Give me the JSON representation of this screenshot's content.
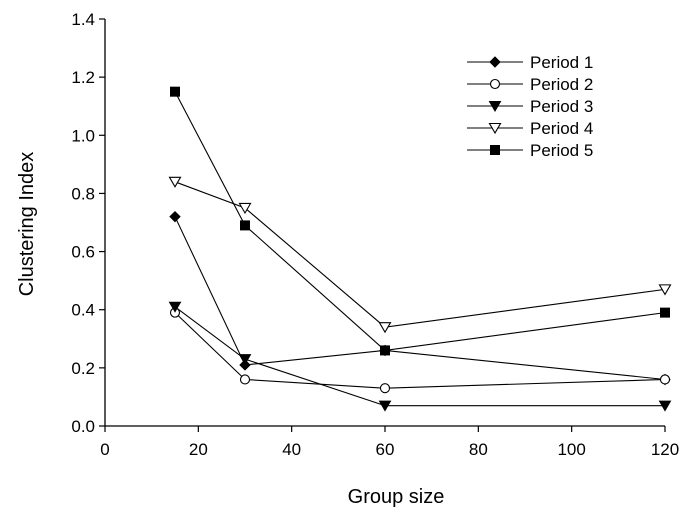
{
  "chart_data": {
    "type": "line",
    "title": "",
    "xlabel": "Group size",
    "ylabel": "Clustering Index",
    "xlim": [
      0,
      120
    ],
    "ylim": [
      0.0,
      1.4
    ],
    "x_ticks": [
      "0",
      "20",
      "40",
      "60",
      "80",
      "100",
      "120"
    ],
    "y_ticks": [
      "0.0",
      "0.2",
      "0.4",
      "0.6",
      "0.8",
      "1.0",
      "1.2",
      "1.4"
    ],
    "grid": false,
    "legend_position": "top-right",
    "x": [
      15,
      30,
      60,
      120
    ],
    "series": [
      {
        "name": "Period 1",
        "marker": "filled-diamond",
        "values": [
          0.72,
          0.21,
          0.26,
          0.16
        ]
      },
      {
        "name": "Period 2",
        "marker": "open-circle",
        "values": [
          0.39,
          0.16,
          0.13,
          0.16
        ]
      },
      {
        "name": "Period 3",
        "marker": "filled-triangle-down",
        "values": [
          0.41,
          0.23,
          0.07,
          0.07
        ]
      },
      {
        "name": "Period 4",
        "marker": "open-triangle-down",
        "values": [
          0.84,
          0.75,
          0.34,
          0.47
        ]
      },
      {
        "name": "Period 5",
        "marker": "filled-square",
        "values": [
          1.15,
          0.69,
          0.26,
          0.39
        ]
      }
    ]
  }
}
